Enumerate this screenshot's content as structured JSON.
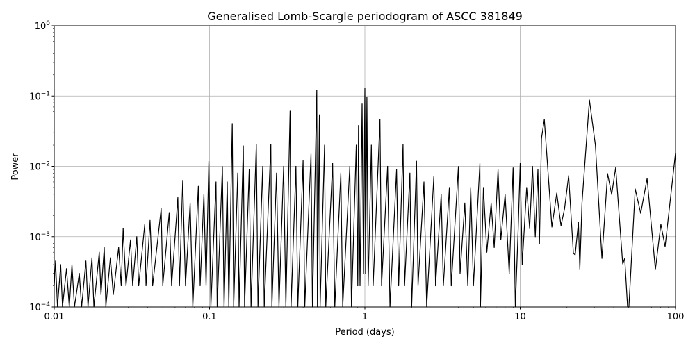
{
  "chart_data": {
    "type": "line",
    "title": "Generalised Lomb-Scargle periodogram of ASCC 381849",
    "xlabel": "Period (days)",
    "ylabel": "Power",
    "xscale": "log",
    "yscale": "log",
    "xlim": [
      0.01,
      100
    ],
    "ylim": [
      0.0001,
      1
    ],
    "grid": true,
    "line_color": "#000000",
    "grid_color": "#b0b0b0",
    "x_ticks": [
      {
        "value": 0.01,
        "label": "0.01"
      },
      {
        "value": 0.1,
        "label": "0.1"
      },
      {
        "value": 1,
        "label": "1"
      },
      {
        "value": 10,
        "label": "10"
      },
      {
        "value": 100,
        "label": "100"
      }
    ],
    "y_ticks": [
      {
        "value": 0.0001,
        "base": "10",
        "exp": "−4"
      },
      {
        "value": 0.001,
        "base": "10",
        "exp": "−3"
      },
      {
        "value": 0.01,
        "base": "10",
        "exp": "−2"
      },
      {
        "value": 0.1,
        "base": "10",
        "exp": "−1"
      },
      {
        "value": 1,
        "base": "10",
        "exp": "0"
      }
    ],
    "points": [
      [
        0.01,
        0.0002
      ],
      [
        0.0102,
        0.00045
      ],
      [
        0.0105,
        0.0001
      ],
      [
        0.011,
        0.0004
      ],
      [
        0.0113,
        0.0001
      ],
      [
        0.012,
        0.00035
      ],
      [
        0.0125,
        0.0001
      ],
      [
        0.013,
        0.0004
      ],
      [
        0.0135,
        0.0001
      ],
      [
        0.0145,
        0.0003
      ],
      [
        0.015,
        0.0001
      ],
      [
        0.016,
        0.00045
      ],
      [
        0.0165,
        0.0001
      ],
      [
        0.0175,
        0.0005
      ],
      [
        0.018,
        0.0001
      ],
      [
        0.0195,
        0.0006
      ],
      [
        0.02,
        0.00015
      ],
      [
        0.021,
        0.0007
      ],
      [
        0.0215,
        0.0001
      ],
      [
        0.023,
        0.0005
      ],
      [
        0.024,
        0.00015
      ],
      [
        0.026,
        0.0007
      ],
      [
        0.027,
        0.0002
      ],
      [
        0.0278,
        0.0013
      ],
      [
        0.029,
        0.0002
      ],
      [
        0.031,
        0.0009
      ],
      [
        0.032,
        0.0002
      ],
      [
        0.034,
        0.001
      ],
      [
        0.035,
        0.0002
      ],
      [
        0.0383,
        0.0015
      ],
      [
        0.039,
        0.0002
      ],
      [
        0.0414,
        0.0017
      ],
      [
        0.043,
        0.0002
      ],
      [
        0.0488,
        0.0025
      ],
      [
        0.05,
        0.0002
      ],
      [
        0.055,
        0.0022
      ],
      [
        0.057,
        0.0002
      ],
      [
        0.0625,
        0.0036
      ],
      [
        0.064,
        0.0002
      ],
      [
        0.0672,
        0.0063
      ],
      [
        0.07,
        0.0002
      ],
      [
        0.075,
        0.003
      ],
      [
        0.078,
        0.0001
      ],
      [
        0.0847,
        0.0052
      ],
      [
        0.087,
        0.0002
      ],
      [
        0.092,
        0.004
      ],
      [
        0.095,
        0.0002
      ],
      [
        0.099,
        0.0118
      ],
      [
        0.102,
        0.0001
      ],
      [
        0.11,
        0.006
      ],
      [
        0.112,
        0.0001
      ],
      [
        0.121,
        0.0099
      ],
      [
        0.124,
        0.0001
      ],
      [
        0.13,
        0.006
      ],
      [
        0.133,
        0.0001
      ],
      [
        0.14,
        0.0405
      ],
      [
        0.143,
        0.0001
      ],
      [
        0.152,
        0.008
      ],
      [
        0.155,
        0.0001
      ],
      [
        0.165,
        0.0195
      ],
      [
        0.168,
        0.0001
      ],
      [
        0.18,
        0.009
      ],
      [
        0.185,
        0.0001
      ],
      [
        0.2,
        0.0205
      ],
      [
        0.205,
        0.0001
      ],
      [
        0.22,
        0.01
      ],
      [
        0.225,
        0.0001
      ],
      [
        0.248,
        0.0205
      ],
      [
        0.252,
        0.0001
      ],
      [
        0.27,
        0.008
      ],
      [
        0.28,
        0.0001
      ],
      [
        0.3,
        0.01
      ],
      [
        0.31,
        0.0001
      ],
      [
        0.33,
        0.061
      ],
      [
        0.335,
        0.0001
      ],
      [
        0.36,
        0.01
      ],
      [
        0.37,
        0.0001
      ],
      [
        0.4,
        0.012
      ],
      [
        0.41,
        0.0001
      ],
      [
        0.45,
        0.015
      ],
      [
        0.46,
        0.0001
      ],
      [
        0.49,
        0.12
      ],
      [
        0.495,
        0.0001
      ],
      [
        0.51,
        0.054
      ],
      [
        0.515,
        0.0001
      ],
      [
        0.55,
        0.02
      ],
      [
        0.56,
        0.0001
      ],
      [
        0.62,
        0.011
      ],
      [
        0.64,
        0.0001
      ],
      [
        0.7,
        0.008
      ],
      [
        0.72,
        0.0001
      ],
      [
        0.8,
        0.01
      ],
      [
        0.82,
        0.0001
      ],
      [
        0.88,
        0.02
      ],
      [
        0.9,
        0.0002
      ],
      [
        0.91,
        0.038
      ],
      [
        0.93,
        0.0002
      ],
      [
        0.96,
        0.077
      ],
      [
        0.98,
        0.0003
      ],
      [
        1.0,
        0.13
      ],
      [
        1.01,
        0.0003
      ],
      [
        1.03,
        0.096
      ],
      [
        1.05,
        0.0002
      ],
      [
        1.1,
        0.02
      ],
      [
        1.13,
        0.0002
      ],
      [
        1.25,
        0.046
      ],
      [
        1.28,
        0.0002
      ],
      [
        1.4,
        0.01
      ],
      [
        1.45,
        0.0001
      ],
      [
        1.6,
        0.009
      ],
      [
        1.65,
        0.0002
      ],
      [
        1.76,
        0.0205
      ],
      [
        1.8,
        0.0002
      ],
      [
        1.95,
        0.008
      ],
      [
        2.0,
        0.0001
      ],
      [
        2.15,
        0.0118
      ],
      [
        2.2,
        0.0002
      ],
      [
        2.4,
        0.006
      ],
      [
        2.5,
        0.0001
      ],
      [
        2.78,
        0.0071
      ],
      [
        2.85,
        0.0002
      ],
      [
        3.1,
        0.004
      ],
      [
        3.2,
        0.0002
      ],
      [
        3.5,
        0.005
      ],
      [
        3.6,
        0.0002
      ],
      [
        4.0,
        0.0099
      ],
      [
        4.1,
        0.0003
      ],
      [
        4.4,
        0.003
      ],
      [
        4.6,
        0.0002
      ],
      [
        4.8,
        0.005
      ],
      [
        5.0,
        0.0002
      ],
      [
        5.5,
        0.011
      ],
      [
        5.55,
        0.0001
      ],
      [
        5.8,
        0.005
      ],
      [
        6.1,
        0.0006
      ],
      [
        6.5,
        0.003
      ],
      [
        6.8,
        0.0007
      ],
      [
        7.2,
        0.009
      ],
      [
        7.5,
        0.0009
      ],
      [
        8.0,
        0.004
      ],
      [
        8.5,
        0.0003
      ],
      [
        9.0,
        0.0095
      ],
      [
        9.3,
        0.0001
      ],
      [
        9.7,
        0.0012
      ],
      [
        10.0,
        0.011
      ],
      [
        10.3,
        0.0004
      ],
      [
        11.0,
        0.005
      ],
      [
        11.5,
        0.0013
      ],
      [
        12.0,
        0.01
      ],
      [
        12.5,
        0.001
      ],
      [
        13.0,
        0.009
      ],
      [
        13.3,
        0.0008
      ],
      [
        13.7,
        0.025
      ],
      [
        14.3,
        0.0464
      ],
      [
        16.0,
        0.00137
      ],
      [
        17.2,
        0.00417
      ],
      [
        18.3,
        0.00143
      ],
      [
        19.3,
        0.0025
      ],
      [
        20.5,
        0.00736
      ],
      [
        22.0,
        0.00058
      ],
      [
        22.6,
        0.00055
      ],
      [
        23.7,
        0.0016
      ],
      [
        24.2,
        0.00034
      ],
      [
        25.0,
        0.003
      ],
      [
        27.9,
        0.0877
      ],
      [
        30.5,
        0.02
      ],
      [
        33.6,
        0.00049
      ],
      [
        36.5,
        0.00787
      ],
      [
        38.8,
        0.00398
      ],
      [
        41.2,
        0.00966
      ],
      [
        45.7,
        0.00041
      ],
      [
        47.1,
        0.00049
      ],
      [
        49.1,
        0.0001
      ],
      [
        50.1,
        0.0001
      ],
      [
        55.0,
        0.00478
      ],
      [
        59.7,
        0.00215
      ],
      [
        65.6,
        0.00672
      ],
      [
        74.2,
        0.00034
      ],
      [
        80.5,
        0.0015
      ],
      [
        85.7,
        0.00072
      ],
      [
        100,
        0.0156
      ]
    ]
  }
}
